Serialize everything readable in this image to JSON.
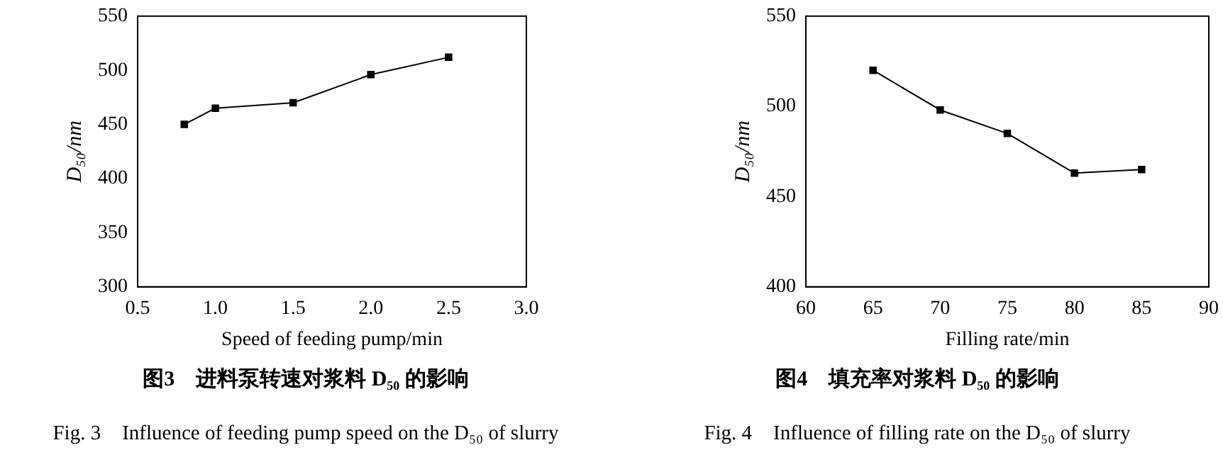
{
  "chart_data": [
    {
      "type": "line",
      "title": "图3　进料泵转速对浆料 D₅₀ 的影响",
      "subtitle": "Fig. 3　Influence of feeding pump speed on the D₅₀ of slurry",
      "xlabel": "Speed of feeding pump/min",
      "ylabel": "D₅₀/nm",
      "x": [
        0.8,
        1.0,
        1.5,
        2.0,
        2.5
      ],
      "values": [
        450,
        465,
        470,
        496,
        512
      ],
      "color": "#000000",
      "marker": "square",
      "line_style": "solid",
      "xlim": [
        0.5,
        3.0
      ],
      "xticks": [
        {
          "value": 0.5,
          "label": "0.5"
        },
        {
          "value": 1,
          "label": "1.0"
        },
        {
          "value": 1.5,
          "label": "1.5"
        },
        {
          "value": 2,
          "label": "2.0"
        },
        {
          "value": 2.5,
          "label": "2.5"
        },
        {
          "value": 3,
          "label": "3.0"
        }
      ],
      "ylim": [
        300,
        550
      ],
      "yticks": [
        300,
        350,
        400,
        450,
        500,
        550
      ]
    },
    {
      "type": "line",
      "title": "图4　填充率对浆料 D₅₀ 的影响",
      "subtitle": "Fig. 4　Influence of filling rate on the D₅₀ of slurry",
      "xlabel": "Filling rate/min",
      "ylabel": "D₅₀/nm",
      "x": [
        65,
        70,
        75,
        80,
        85
      ],
      "values": [
        520,
        498,
        485,
        463,
        465
      ],
      "color": "#000000",
      "marker": "square",
      "line_style": "solid",
      "xlim": [
        60,
        90
      ],
      "xticks": [
        60,
        65,
        70,
        75,
        80,
        85,
        90
      ],
      "ylim": [
        400,
        550
      ],
      "yticks": [
        400,
        450,
        500,
        550
      ]
    }
  ]
}
